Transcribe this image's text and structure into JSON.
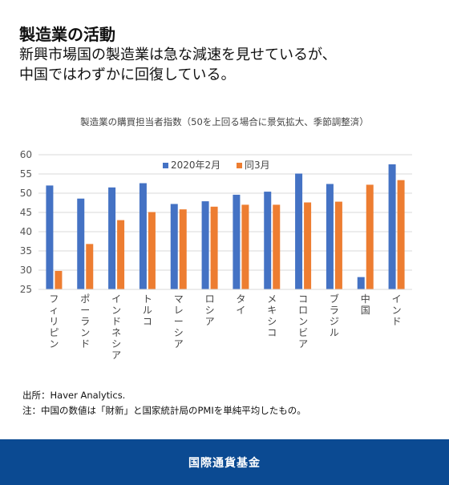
{
  "headline": {
    "title": "製造業の活動",
    "subtitle_line1": "新興市場国の製造業は急な減速を見せているが、",
    "subtitle_line2": "中国ではわずかに回復している。"
  },
  "notes": {
    "source": "出所：Haver Analytics.",
    "note": "注：中国の数値は「財新」と国家統計局のPMIを単純平均したもの。"
  },
  "footer": {
    "label": "国際通貨基金"
  },
  "colors": {
    "series1": "#4472c4",
    "series2": "#ed7d31",
    "footer": "#0b4a92"
  },
  "chart_data": {
    "type": "bar",
    "title": "製造業の購買担当者指数（50を上回る場合に景気拡大、季節調整済）",
    "categories": [
      "フィリピン",
      "ポーランド",
      "インドネシア",
      "トルコ",
      "マレーシア",
      "ロシア",
      "タイ",
      "メキシコ",
      "コロンビア",
      "ブラジル",
      "中国",
      "インド"
    ],
    "series": [
      {
        "name": "2020年2月",
        "values": [
          52.0,
          48.6,
          51.5,
          52.6,
          47.2,
          47.9,
          49.6,
          50.4,
          55.1,
          52.4,
          28.2,
          57.5
        ]
      },
      {
        "name": "同3月",
        "values": [
          29.8,
          36.8,
          43.0,
          45.1,
          45.8,
          46.5,
          47.0,
          47.0,
          47.6,
          47.8,
          52.2,
          53.4
        ]
      }
    ],
    "ylim": [
      25,
      60
    ],
    "yticks": [
      25,
      30,
      35,
      40,
      45,
      50,
      55,
      60
    ],
    "grid": true,
    "legend": "top-center"
  }
}
